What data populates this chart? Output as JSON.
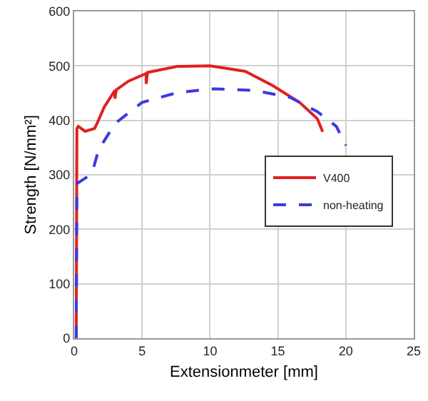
{
  "chart_data": {
    "type": "line",
    "xlabel": "Extensionmeter [mm]",
    "ylabel": "Strength [N/mm²]",
    "xlim": [
      0,
      25
    ],
    "xticks": [
      0,
      5,
      10,
      15,
      20,
      25
    ],
    "ylim": [
      0,
      600
    ],
    "yticks": [
      0,
      100,
      200,
      300,
      400,
      500,
      600
    ],
    "grid": true,
    "legend": "right",
    "marker": "none",
    "series": [
      {
        "name": "V400",
        "color": "#e02020",
        "line_style": "solid",
        "x": [
          0.15,
          0.2,
          0.3,
          0.8,
          1.5,
          1.7,
          2.2,
          3.0,
          3.0,
          3.1,
          4.0,
          5.3,
          5.3,
          5.4,
          7.6,
          10.0,
          12.6,
          14.6,
          16.6,
          17.9,
          18.3
        ],
        "values": [
          0,
          385,
          389,
          380,
          385,
          395,
          424,
          455,
          440,
          456,
          472,
          486,
          467,
          488,
          499,
          500,
          490,
          464,
          433,
          403,
          379
        ]
      },
      {
        "name": "non-heating",
        "color": "#3a3ae0",
        "line_style": "dashed",
        "x": [
          0.15,
          0.2,
          0.7,
          1.3,
          1.8,
          3.0,
          5.0,
          7.6,
          10.3,
          13.3,
          15.9,
          17.9,
          19.3,
          20.0
        ],
        "values": [
          0,
          284,
          292,
          302,
          346,
          394,
          433,
          451,
          458,
          455,
          442,
          416,
          389,
          354
        ]
      }
    ]
  }
}
